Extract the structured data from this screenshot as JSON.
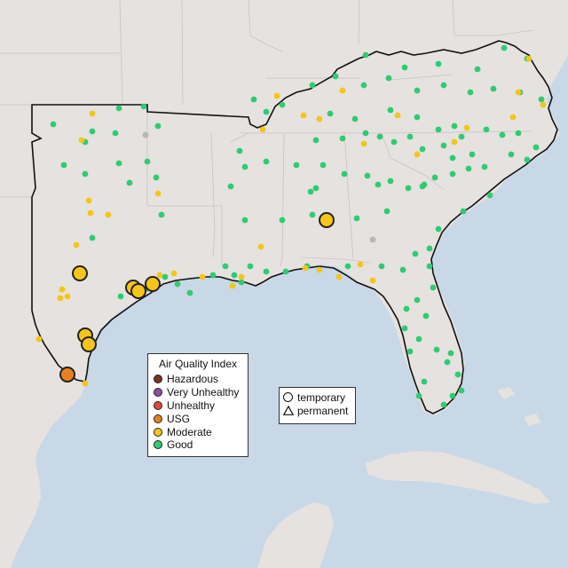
{
  "colors": {
    "water": "#c9d8e6",
    "land": "#e6e2df",
    "hazardous": "#7e3222",
    "very_unhealthy": "#8f4fa0",
    "unhealthy": "#e34a33",
    "usg": "#e98020",
    "moderate": "#f5c518",
    "good": "#2ecc71",
    "no_data": "#b8b8b8"
  },
  "legend": {
    "title": "Air Quality Index",
    "categories": [
      {
        "label": "Hazardous",
        "color": "#7e3222"
      },
      {
        "label": "Very Unhealthy",
        "color": "#8f4fa0"
      },
      {
        "label": "Unhealthy",
        "color": "#e34a33"
      },
      {
        "label": "USG",
        "color": "#e98020"
      },
      {
        "label": "Moderate",
        "color": "#f5c518"
      },
      {
        "label": "Good",
        "color": "#2ecc71"
      }
    ]
  },
  "shape_legend": {
    "temporary": "temporary",
    "permanent": "permanent"
  }
}
